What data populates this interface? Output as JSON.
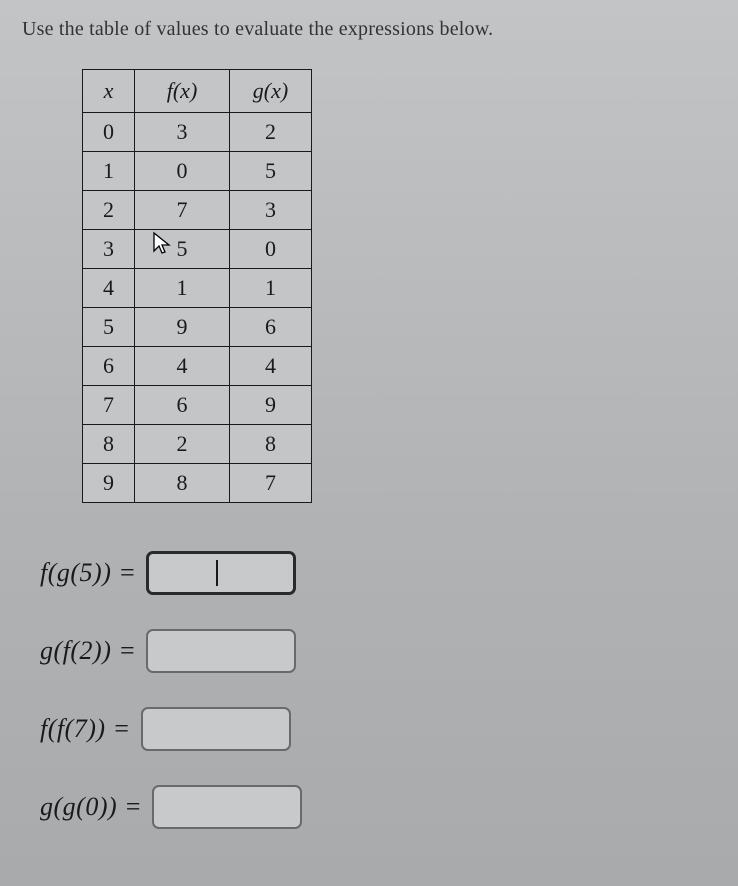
{
  "prompt_text": "Use the table of values to evaluate the expressions below.",
  "table": {
    "headers": {
      "x": "x",
      "f": "f(x)",
      "g": "g(x)"
    },
    "rows": [
      {
        "x": "0",
        "f": "3",
        "g": "2"
      },
      {
        "x": "1",
        "f": "0",
        "g": "5"
      },
      {
        "x": "2",
        "f": "7",
        "g": "3"
      },
      {
        "x": "3",
        "f": "5",
        "g": "0"
      },
      {
        "x": "4",
        "f": "1",
        "g": "1"
      },
      {
        "x": "5",
        "f": "9",
        "g": "6"
      },
      {
        "x": "6",
        "f": "4",
        "g": "4"
      },
      {
        "x": "7",
        "f": "6",
        "g": "9"
      },
      {
        "x": "8",
        "f": "2",
        "g": "8"
      },
      {
        "x": "9",
        "f": "8",
        "g": "7"
      }
    ]
  },
  "cursor": {
    "row_index": 3,
    "col": "f"
  },
  "expressions": [
    {
      "label": "f(g(5)) =",
      "value": "",
      "focused": true
    },
    {
      "label": "g(f(2)) =",
      "value": "",
      "focused": false
    },
    {
      "label": "f(f(7)) =",
      "value": "",
      "focused": false
    },
    {
      "label": "g(g(0)) =",
      "value": "",
      "focused": false
    }
  ]
}
